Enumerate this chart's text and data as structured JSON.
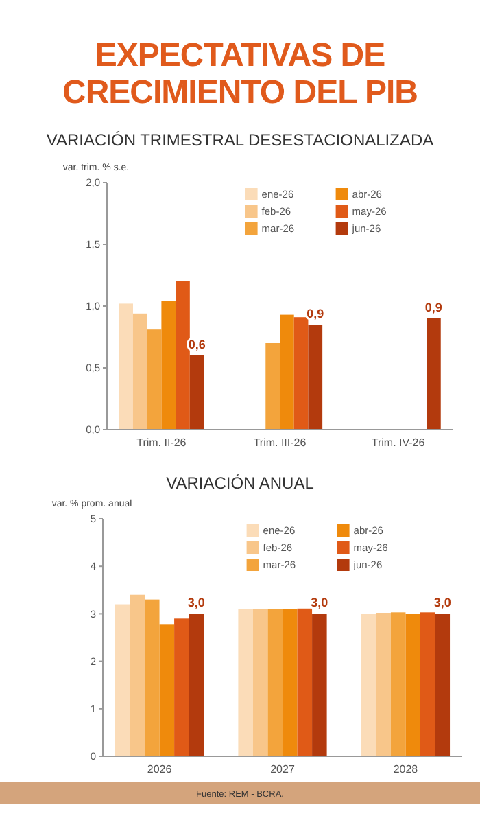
{
  "chart_data": [
    {
      "type": "bar",
      "title": "EXPECTATIVAS DE CRECIMIENTO DEL PIB",
      "subtitle": "VARIACIÓN TRIMESTRAL DESESTACIONALIZADA",
      "ylabel": "var. trim. % s.e.",
      "categories": [
        "Trim. II-26",
        "Trim. III-26",
        "Trim. IV-26"
      ],
      "series": [
        {
          "name": "ene-26",
          "color": "#fbdcb8",
          "values": [
            1.02,
            null,
            null
          ]
        },
        {
          "name": "feb-26",
          "color": "#f8c68a",
          "values": [
            0.94,
            null,
            null
          ]
        },
        {
          "name": "mar-26",
          "color": "#f3a43c",
          "values": [
            0.81,
            0.7,
            null
          ]
        },
        {
          "name": "abr-26",
          "color": "#ef8a0c",
          "values": [
            1.04,
            0.93,
            null
          ]
        },
        {
          "name": "may-26",
          "color": "#e05a17",
          "values": [
            1.2,
            0.91,
            null
          ]
        },
        {
          "name": "jun-26",
          "color": "#b33a0d",
          "values": [
            0.6,
            0.85,
            0.9
          ],
          "value_labels": [
            "0,6",
            "0,9",
            "0,9"
          ]
        }
      ],
      "ylim": [
        0,
        2
      ],
      "yticks": [
        {
          "value": 0,
          "label": "0,0"
        },
        {
          "value": 0.5,
          "label": "0,5"
        },
        {
          "value": 1,
          "label": "1,0"
        },
        {
          "value": 1.5,
          "label": "1,5"
        },
        {
          "value": 2,
          "label": "2,0"
        }
      ],
      "legend": "top right",
      "grid": false
    },
    {
      "type": "bar",
      "title": "VARIACIÓN ANUAL",
      "ylabel": "var. % prom. anual",
      "categories": [
        "2026",
        "2027",
        "2028"
      ],
      "series": [
        {
          "name": "ene-26",
          "color": "#fbdcb8",
          "values": [
            3.2,
            3.1,
            3.0
          ]
        },
        {
          "name": "feb-26",
          "color": "#f8c68a",
          "values": [
            3.4,
            3.1,
            3.02
          ]
        },
        {
          "name": "mar-26",
          "color": "#f3a43c",
          "values": [
            3.3,
            3.1,
            3.03
          ]
        },
        {
          "name": "abr-26",
          "color": "#ef8a0c",
          "values": [
            2.77,
            3.1,
            3.0
          ]
        },
        {
          "name": "may-26",
          "color": "#e05a17",
          "values": [
            2.9,
            3.11,
            3.03
          ]
        },
        {
          "name": "jun-26",
          "color": "#b33a0d",
          "values": [
            3.0,
            3.0,
            3.0
          ],
          "value_labels": [
            "3,0",
            "3,0",
            "3,0"
          ]
        }
      ],
      "ylim": [
        0,
        5
      ],
      "yticks": [
        0,
        1,
        2,
        3,
        4,
        5
      ],
      "legend": "top right",
      "grid": false,
      "annotations": [
        "Fuente: REM - BCRA."
      ]
    }
  ]
}
